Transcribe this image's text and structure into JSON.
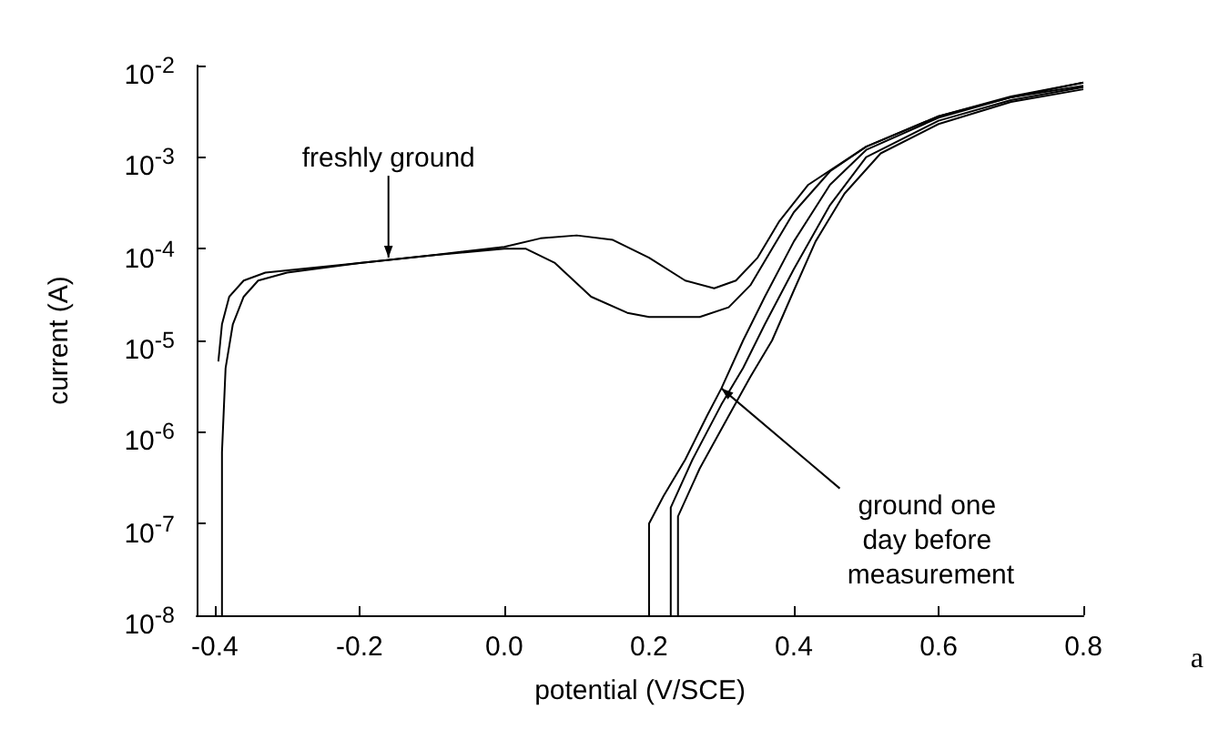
{
  "chart_data": {
    "type": "line",
    "xlabel": "potential (V/SCE)",
    "ylabel": "current (A)",
    "series": [
      {
        "color": "#000000",
        "x": [
          -0.395,
          -0.39,
          -0.38,
          -0.36,
          -0.33,
          -0.2,
          -0.1,
          0.0,
          0.05,
          0.1,
          0.15,
          0.2,
          0.25,
          0.29,
          0.32,
          0.35,
          0.38,
          0.42,
          0.5,
          0.6,
          0.7,
          0.8
        ],
        "values": [
          5.9e-06,
          1.5e-05,
          3e-05,
          4.5e-05,
          5.5e-05,
          7e-05,
          8.5e-05,
          0.000105,
          0.00013,
          0.00014,
          0.000125,
          8e-05,
          4.5e-05,
          3.7e-05,
          4.5e-05,
          8e-05,
          0.0002,
          0.0005,
          0.0013,
          0.0028,
          0.0045,
          0.006
        ]
      },
      {
        "color": "#000000",
        "x": [
          -0.39,
          -0.39,
          -0.385,
          -0.375,
          -0.36,
          -0.34,
          -0.3,
          -0.2,
          -0.1,
          0.0,
          0.03,
          0.07,
          0.12,
          0.17,
          0.2,
          0.27,
          0.31,
          0.34,
          0.37,
          0.4,
          0.45,
          0.5,
          0.6,
          0.7,
          0.8
        ],
        "values": [
          1e-08,
          6e-07,
          5e-06,
          1.5e-05,
          3e-05,
          4.5e-05,
          5.5e-05,
          7e-05,
          8.5e-05,
          0.0001,
          0.0001,
          7e-05,
          3e-05,
          2e-05,
          1.8e-05,
          1.8e-05,
          2.3e-05,
          4e-05,
          0.0001,
          0.00025,
          0.0007,
          0.0013,
          0.0028,
          0.0046,
          0.0065
        ]
      },
      {
        "color": "#000000",
        "x": [
          0.2,
          0.2,
          0.22,
          0.25,
          0.28,
          0.3,
          0.33,
          0.36,
          0.4,
          0.45,
          0.5,
          0.6,
          0.7,
          0.8
        ],
        "values": [
          1e-08,
          1e-07,
          2e-07,
          5e-07,
          1.5e-06,
          3e-06,
          1e-05,
          3e-05,
          0.00012,
          0.0005,
          0.0012,
          0.0027,
          0.0045,
          0.0065
        ]
      },
      {
        "color": "#000000",
        "x": [
          0.23,
          0.23,
          0.26,
          0.3,
          0.33,
          0.36,
          0.4,
          0.45,
          0.5,
          0.6,
          0.7,
          0.8
        ],
        "values": [
          1e-08,
          1.5e-07,
          5e-07,
          2e-06,
          5e-06,
          1.5e-05,
          6e-05,
          0.0003,
          0.001,
          0.0025,
          0.0042,
          0.0058
        ]
      },
      {
        "color": "#000000",
        "x": [
          0.24,
          0.24,
          0.27,
          0.31,
          0.34,
          0.37,
          0.4,
          0.43,
          0.47,
          0.52,
          0.6,
          0.7,
          0.8
        ],
        "values": [
          1e-08,
          1.2e-07,
          4e-07,
          1.5e-06,
          4e-06,
          1e-05,
          3.5e-05,
          0.00012,
          0.0004,
          0.0011,
          0.0023,
          0.004,
          0.0055
        ]
      }
    ],
    "log": "y",
    "grid": false,
    "marker": "none",
    "line_style": "solid",
    "xlim": [
      -0.425,
      0.8
    ],
    "xticks": [
      -0.4,
      -0.2,
      {
        "value": 0,
        "label": "0.0"
      },
      0.2,
      0.4,
      0.6,
      0.8
    ],
    "ylim": [
      1e-08,
      0.01
    ],
    "yticks": [
      {
        "value": 1e-08,
        "label": "10$^{-8}$"
      },
      {
        "value": 1e-07,
        "label": "10$^{-7}$"
      },
      {
        "value": 1e-06,
        "label": "10$^{-6}$"
      },
      {
        "value": 1e-05,
        "label": "10$^{-5}$"
      },
      {
        "value": 0.0001,
        "label": "10$^{-4}$"
      },
      {
        "value": 0.001,
        "label": "10$^{-3}$"
      },
      {
        "value": 0.01,
        "label": "10$^{-2}$"
      }
    ],
    "annotations": [
      {
        "text": "freshly ground",
        "x": -0.16,
        "y": 8e-05
      },
      {
        "text": "ground one day before measurement",
        "x": 0.3,
        "y": 3e-06
      },
      "a"
    ]
  }
}
